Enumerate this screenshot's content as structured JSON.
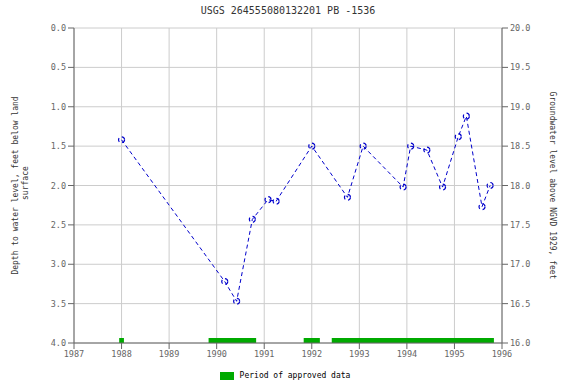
{
  "chart_data": {
    "type": "line",
    "title": "USGS 264555080132201 PB -1536",
    "ylabel": "Depth to water level, feet below land\n surface",
    "y2label": "Groundwater level above NGVD 1929, feet",
    "xlim": [
      1987,
      1996
    ],
    "xticks": [
      1987,
      1988,
      1989,
      1990,
      1991,
      1992,
      1993,
      1994,
      1995,
      1996
    ],
    "ylim": [
      4.0,
      0.0
    ],
    "yticks": [
      {
        "value": 0.0,
        "label": "0.0"
      },
      0.5,
      {
        "value": 1.0,
        "label": "1.0"
      },
      1.5,
      {
        "value": 2.0,
        "label": "2.0"
      },
      2.5,
      {
        "value": 3.0,
        "label": "3.0"
      },
      3.5,
      {
        "value": 4.0,
        "label": "4.0"
      }
    ],
    "y2lim": [
      16.0,
      20.0
    ],
    "y2ticks": [
      {
        "value": 16.0,
        "label": "16.0"
      },
      16.5,
      {
        "value": 17.0,
        "label": "17.0"
      },
      17.5,
      {
        "value": 18.0,
        "label": "18.0"
      },
      18.5,
      {
        "value": 19.0,
        "label": "19.0"
      },
      19.5,
      {
        "value": 20.0,
        "label": "20.0"
      }
    ],
    "grid": true,
    "x": [
      1988.0,
      1990.17,
      1990.42,
      1990.75,
      1991.08,
      1991.25,
      1992.0,
      1992.75,
      1993.08,
      1993.92,
      1994.08,
      1994.42,
      1994.75,
      1995.08,
      1995.25,
      1995.58,
      1995.75
    ],
    "series": [
      {
        "type": "line",
        "color": "#0000cc",
        "marker": "o",
        "line_style": "dashed",
        "values": [
          1.42,
          3.22,
          3.47,
          2.43,
          2.18,
          2.2,
          1.5,
          2.15,
          1.5,
          2.02,
          1.5,
          1.55,
          2.02,
          1.38,
          1.12,
          2.27,
          2.0
        ]
      },
      {
        "name": "Period of approved data",
        "type": "span",
        "color": "#00aa00",
        "ranges": [
          [
            1987.95,
            1988.05
          ],
          [
            1989.83,
            1990.83
          ],
          [
            1991.83,
            1992.17
          ],
          [
            1992.42,
            1995.83
          ]
        ]
      }
    ]
  }
}
